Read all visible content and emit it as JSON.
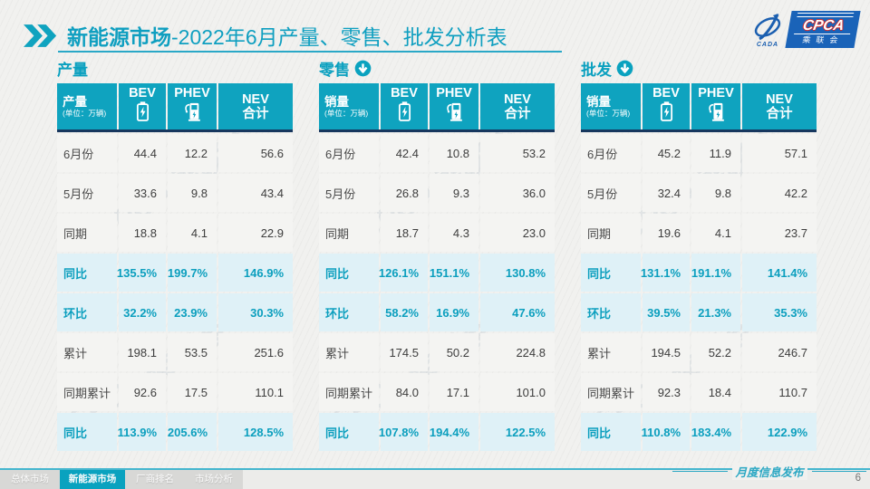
{
  "header": {
    "title_bold": "新能源市场",
    "title_rest": "-2022年6月产量、零售、批发分析表",
    "logo": {
      "swoosh_text": "CADA",
      "box_text": "CPCA",
      "box_sub": "乘联会"
    }
  },
  "watermark": "CPCA乘联会",
  "colors": {
    "teal": "#0fa3bf",
    "navy": "#17375e",
    "highlight_row_bg": "#dff1f7",
    "normal_row_bg": "#f4f4f2",
    "title_teal": "#0f9fc0"
  },
  "tables": [
    {
      "key": "production",
      "section_title": "产量",
      "has_arrow": false,
      "corner_label": "产量",
      "corner_unit": "(单位：万辆)",
      "columns": {
        "bev": "BEV",
        "phev": "PHEV",
        "nev_line1": "NEV",
        "nev_line2": "合计"
      },
      "rows": [
        {
          "label": "6月份",
          "values": [
            "44.4",
            "12.2",
            "56.6"
          ],
          "hl": false
        },
        {
          "label": "5月份",
          "values": [
            "33.6",
            "9.8",
            "43.4"
          ],
          "hl": false
        },
        {
          "label": "同期",
          "values": [
            "18.8",
            "4.1",
            "22.9"
          ],
          "hl": false
        },
        {
          "label": "同比",
          "values": [
            "135.5%",
            "199.7%",
            "146.9%"
          ],
          "hl": true
        },
        {
          "label": "环比",
          "values": [
            "32.2%",
            "23.9%",
            "30.3%"
          ],
          "hl": true
        },
        {
          "label": "累计",
          "values": [
            "198.1",
            "53.5",
            "251.6"
          ],
          "hl": false
        },
        {
          "label": "同期累计",
          "values": [
            "92.6",
            "17.5",
            "110.1"
          ],
          "hl": false
        },
        {
          "label": "同比",
          "values": [
            "113.9%",
            "205.6%",
            "128.5%"
          ],
          "hl": true
        }
      ]
    },
    {
      "key": "retail",
      "section_title": "零售",
      "has_arrow": true,
      "corner_label": "销量",
      "corner_unit": "(单位：万辆)",
      "columns": {
        "bev": "BEV",
        "phev": "PHEV",
        "nev_line1": "NEV",
        "nev_line2": "合计"
      },
      "rows": [
        {
          "label": "6月份",
          "values": [
            "42.4",
            "10.8",
            "53.2"
          ],
          "hl": false
        },
        {
          "label": "5月份",
          "values": [
            "26.8",
            "9.3",
            "36.0"
          ],
          "hl": false
        },
        {
          "label": "同期",
          "values": [
            "18.7",
            "4.3",
            "23.0"
          ],
          "hl": false
        },
        {
          "label": "同比",
          "values": [
            "126.1%",
            "151.1%",
            "130.8%"
          ],
          "hl": true
        },
        {
          "label": "环比",
          "values": [
            "58.2%",
            "16.9%",
            "47.6%"
          ],
          "hl": true
        },
        {
          "label": "累计",
          "values": [
            "174.5",
            "50.2",
            "224.8"
          ],
          "hl": false
        },
        {
          "label": "同期累计",
          "values": [
            "84.0",
            "17.1",
            "101.0"
          ],
          "hl": false
        },
        {
          "label": "同比",
          "values": [
            "107.8%",
            "194.4%",
            "122.5%"
          ],
          "hl": true
        }
      ]
    },
    {
      "key": "wholesale",
      "section_title": "批发",
      "has_arrow": true,
      "corner_label": "销量",
      "corner_unit": "(单位：万辆)",
      "columns": {
        "bev": "BEV",
        "phev": "PHEV",
        "nev_line1": "NEV",
        "nev_line2": "合计"
      },
      "rows": [
        {
          "label": "6月份",
          "values": [
            "45.2",
            "11.9",
            "57.1"
          ],
          "hl": false
        },
        {
          "label": "5月份",
          "values": [
            "32.4",
            "9.8",
            "42.2"
          ],
          "hl": false
        },
        {
          "label": "同期",
          "values": [
            "19.6",
            "4.1",
            "23.7"
          ],
          "hl": false
        },
        {
          "label": "同比",
          "values": [
            "131.1%",
            "191.1%",
            "141.4%"
          ],
          "hl": true
        },
        {
          "label": "环比",
          "values": [
            "39.5%",
            "21.3%",
            "35.3%"
          ],
          "hl": true
        },
        {
          "label": "累计",
          "values": [
            "194.5",
            "52.2",
            "246.7"
          ],
          "hl": false
        },
        {
          "label": "同期累计",
          "values": [
            "92.3",
            "18.4",
            "110.7"
          ],
          "hl": false
        },
        {
          "label": "同比",
          "values": [
            "110.8%",
            "183.4%",
            "122.9%"
          ],
          "hl": true
        }
      ]
    }
  ],
  "footer": {
    "tabs": [
      {
        "label": "总体市场",
        "active": false
      },
      {
        "label": "新能源市场",
        "active": true
      },
      {
        "label": "厂商排名",
        "active": false
      },
      {
        "label": "市场分析",
        "active": false
      }
    ],
    "publish_label": "月度信息发布",
    "page_number": "6"
  }
}
